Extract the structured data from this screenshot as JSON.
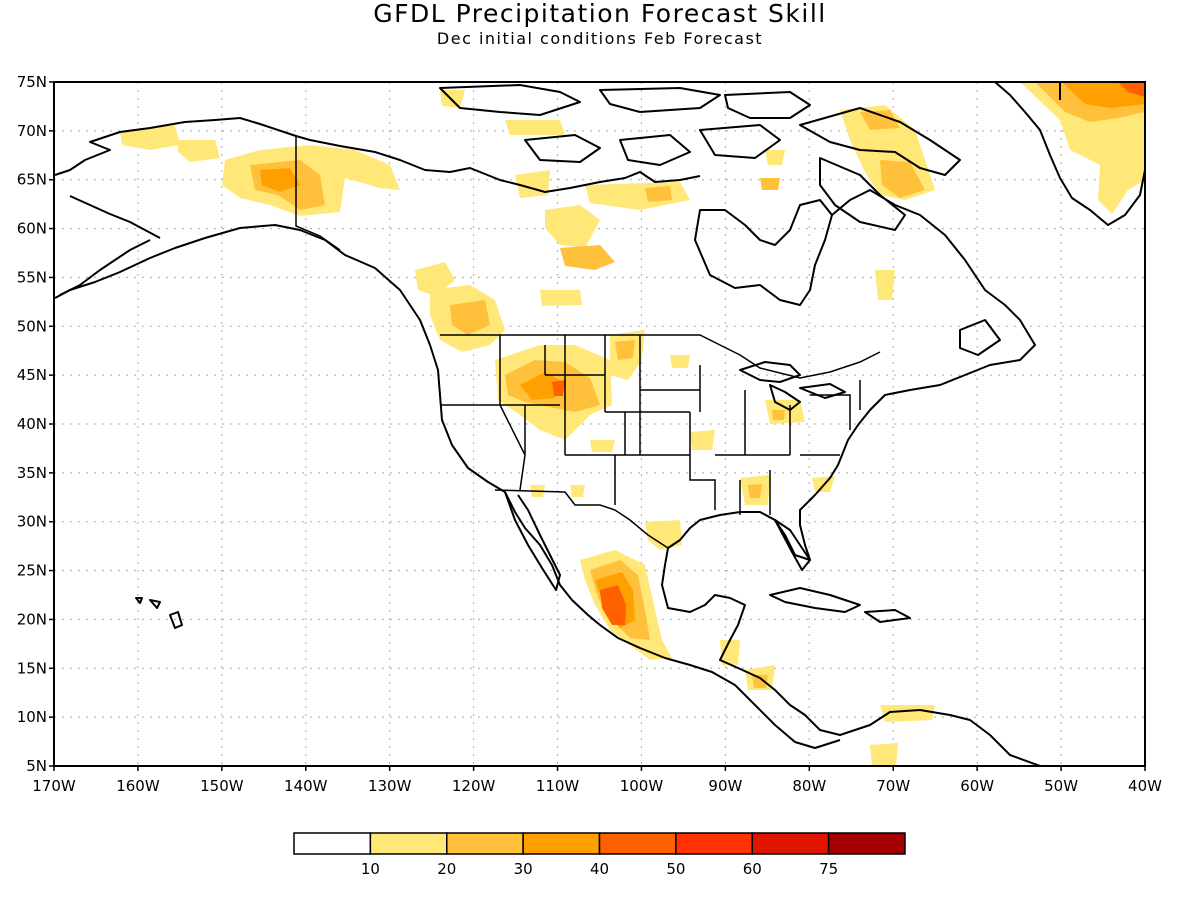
{
  "title": "GFDL Precipitation Forecast Skill",
  "subtitle": "Dec initial conditions  Feb Forecast",
  "map": {
    "lon_range": [
      -170,
      -40
    ],
    "lat_range": [
      5,
      75
    ],
    "lat_ticks": [
      {
        "value": 75,
        "label": "75N"
      },
      {
        "value": 70,
        "label": "70N"
      },
      {
        "value": 65,
        "label": "65N"
      },
      {
        "value": 60,
        "label": "60N"
      },
      {
        "value": 55,
        "label": "55N"
      },
      {
        "value": 50,
        "label": "50N"
      },
      {
        "value": 45,
        "label": "45N"
      },
      {
        "value": 40,
        "label": "40N"
      },
      {
        "value": 35,
        "label": "35N"
      },
      {
        "value": 30,
        "label": "30N"
      },
      {
        "value": 25,
        "label": "25N"
      },
      {
        "value": 20,
        "label": "20N"
      },
      {
        "value": 15,
        "label": "15N"
      },
      {
        "value": 10,
        "label": "10N"
      },
      {
        "value": 5,
        "label": "5N"
      }
    ],
    "lon_ticks": [
      {
        "value": -170,
        "label": "170W"
      },
      {
        "value": -160,
        "label": "160W"
      },
      {
        "value": -150,
        "label": "150W"
      },
      {
        "value": -140,
        "label": "140W"
      },
      {
        "value": -130,
        "label": "130W"
      },
      {
        "value": -120,
        "label": "120W"
      },
      {
        "value": -110,
        "label": "110W"
      },
      {
        "value": -100,
        "label": "100W"
      },
      {
        "value": -90,
        "label": "90W"
      },
      {
        "value": -80,
        "label": "80W"
      },
      {
        "value": -70,
        "label": "70W"
      },
      {
        "value": -60,
        "label": "60W"
      },
      {
        "value": -50,
        "label": "50W"
      },
      {
        "value": -40,
        "label": "40W"
      }
    ]
  },
  "colorbar": {
    "colors": [
      "#ffffff",
      "#ffe878",
      "#ffc03c",
      "#ffa000",
      "#ff6000",
      "#ff3200",
      "#e11400",
      "#a50000"
    ],
    "labels": [
      "10",
      "20",
      "30",
      "40",
      "50",
      "60",
      "75"
    ]
  }
}
